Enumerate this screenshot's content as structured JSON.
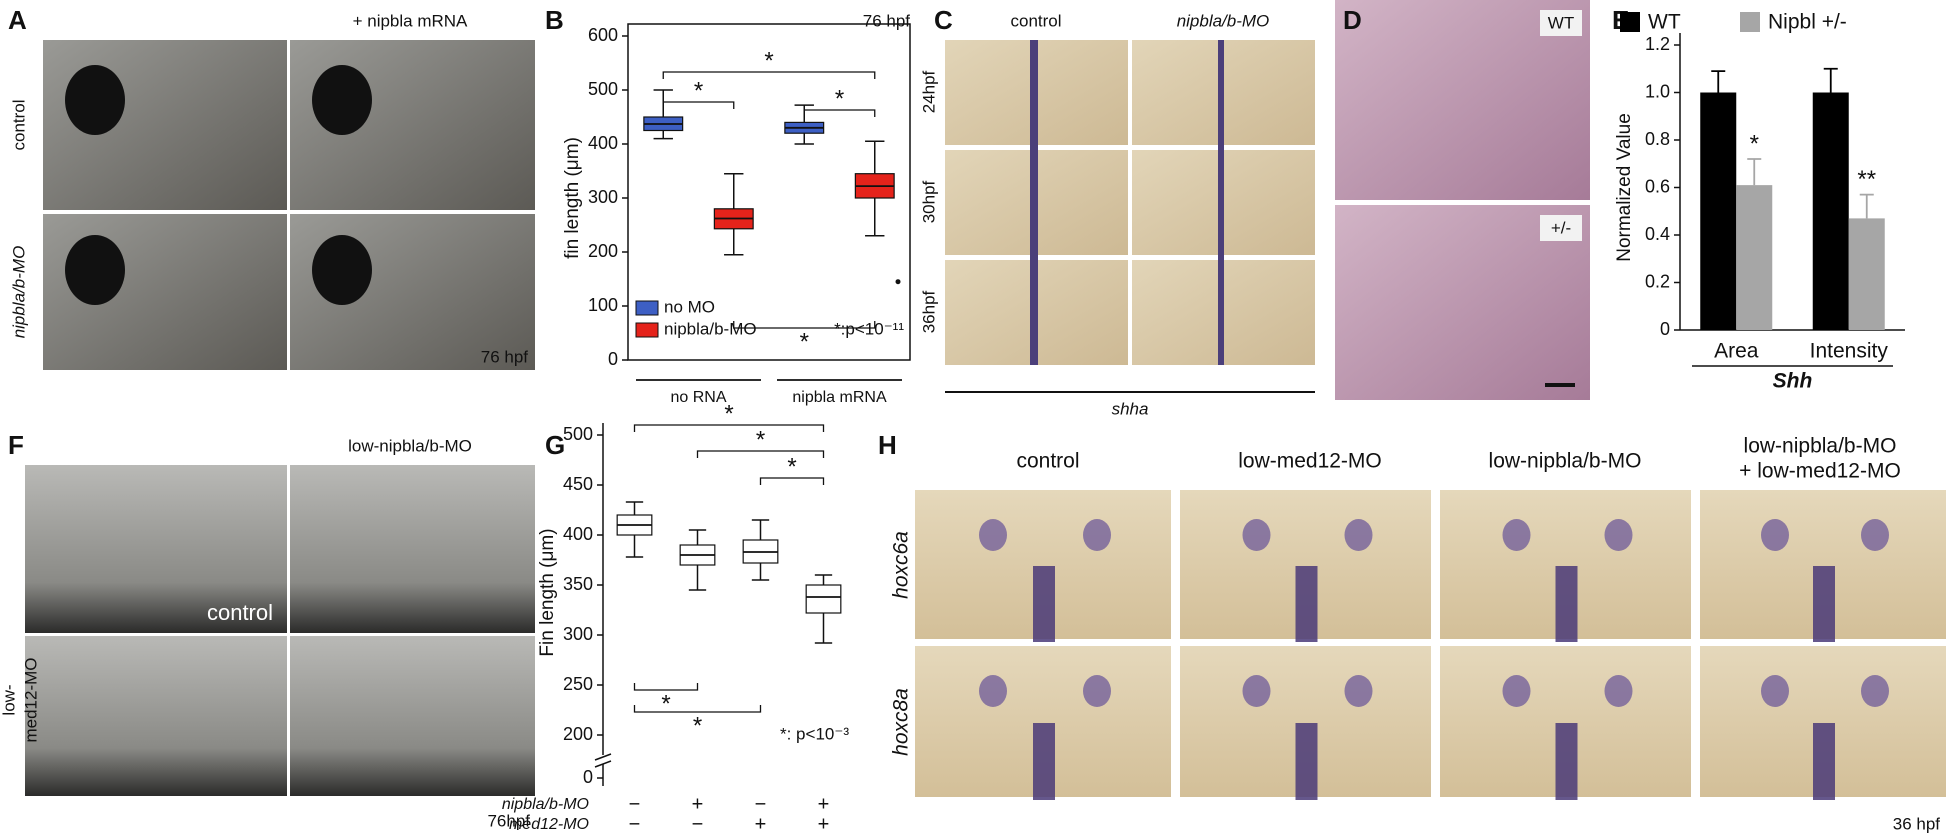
{
  "figure": {
    "A": {
      "letter": "A",
      "column": "+ nipbla mRNA",
      "rows": [
        "control",
        "nipbla/b-MO"
      ],
      "stage": "76 hpf"
    },
    "C": {
      "letter": "C",
      "columns": [
        "control",
        "nipbla/b-MO"
      ],
      "rows": [
        "24hpf",
        "30hpf",
        "36hpf"
      ],
      "gene": "shha"
    },
    "D": {
      "letter": "D",
      "rows": [
        "WT",
        "+/-"
      ]
    },
    "F": {
      "letter": "F",
      "column": "low-nipbla/b-MO",
      "inset": "control",
      "row": [
        "low-",
        "med12-MO"
      ],
      "stage": "76hpf"
    },
    "H": {
      "letter": "H",
      "columns": [
        "control",
        "low-med12-MO",
        "low-nipbla/b-MO"
      ],
      "last_column": [
        "low-nipbla/b-MO",
        "+ low-med12-MO"
      ],
      "rows": [
        "hoxc6a",
        "hoxc8a"
      ],
      "stage": "36 hpf"
    }
  },
  "chart_data": [
    {
      "letter": "B",
      "type": "box",
      "title": "76 hpf",
      "ylabel": "fin length (μm)",
      "categories": [
        "no RNA",
        "nipbla mRNA"
      ],
      "ylim": [
        0,
        600
      ],
      "yticks": [
        0,
        100,
        200,
        300,
        400,
        500,
        600
      ],
      "legend": "lower left",
      "annotation": "*:p<10⁻¹¹",
      "significance": [
        "*",
        "*",
        "*",
        "*"
      ],
      "series": [
        {
          "name": "no MO",
          "color": "#3d5fc4",
          "boxes": [
            {
              "min": 410,
              "q1": 425,
              "median": 437,
              "q3": 450,
              "max": 500
            },
            {
              "min": 400,
              "q1": 420,
              "median": 430,
              "q3": 440,
              "max": 472
            }
          ]
        },
        {
          "name": "nipbla/b-MO",
          "color": "#e5231b",
          "boxes": [
            {
              "min": 195,
              "q1": 243,
              "median": 262,
              "q3": 280,
              "max": 345
            },
            {
              "min": 230,
              "q1": 300,
              "median": 322,
              "q3": 345,
              "max": 405,
              "outliers": [
                145
              ]
            }
          ]
        }
      ]
    },
    {
      "letter": "E",
      "type": "bar",
      "ylabel": "Normalized Value",
      "xlabel": "Shh",
      "categories": [
        "Area",
        "Intensity"
      ],
      "ylim": [
        0,
        1.2
      ],
      "yticks": [
        0,
        0.2,
        0.4,
        0.6,
        0.8,
        {
          "value": 1,
          "label": "1.0"
        },
        1.2
      ],
      "legend": "top",
      "series": [
        {
          "name": "WT",
          "color": "#000000",
          "values": [
            1,
            1
          ],
          "errors": [
            0.09,
            0.1
          ]
        },
        {
          "name": "Nipbl +/-",
          "color": "#a6a6a6",
          "values": [
            0.61,
            0.47
          ],
          "errors": [
            0.11,
            0.1
          ],
          "significance": [
            "*",
            "**"
          ]
        }
      ]
    },
    {
      "letter": "G",
      "type": "box",
      "ylabel": "Fin length (μm)",
      "ylim": [
        185,
        500
      ],
      "axis_break": true,
      "yticks": [
        0,
        200,
        250,
        300,
        350,
        400,
        450,
        500
      ],
      "annotation": "*: p<10⁻³",
      "significance": [
        "*",
        "*",
        "*",
        "*",
        "*"
      ],
      "conditions": [
        {
          "name": "nipbla/b-MO",
          "signs": [
            "−",
            "+",
            "−",
            "+"
          ]
        },
        {
          "name": "med12-MO",
          "signs": [
            "−",
            "−",
            "+",
            "+"
          ]
        }
      ],
      "series": [
        {
          "color": "#ffffff",
          "boxes": [
            {
              "min": 378,
              "q1": 400,
              "median": 410,
              "q3": 420,
              "max": 433
            },
            {
              "min": 345,
              "q1": 370,
              "median": 380,
              "q3": 390,
              "max": 405
            },
            {
              "min": 355,
              "q1": 372,
              "median": 383,
              "q3": 395,
              "max": 415
            },
            {
              "min": 292,
              "q1": 322,
              "median": 338,
              "q3": 350,
              "max": 360
            }
          ]
        }
      ]
    }
  ]
}
